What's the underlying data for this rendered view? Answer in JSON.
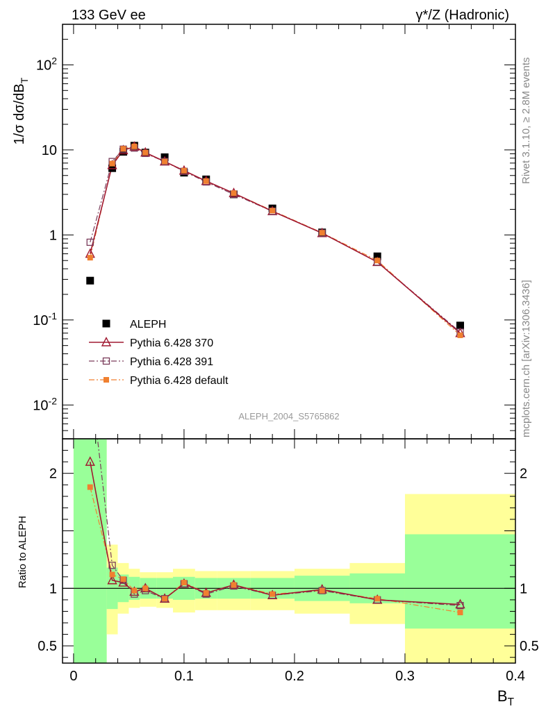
{
  "header": {
    "left": "133 GeV ee",
    "right": "γ*/Z (Hadronic)"
  },
  "side_labels": {
    "rivet": "Rivet 3.1.10, ≥ 2.8M events",
    "mcplots": "mcplots.cern.ch [arXiv:1306.3436]"
  },
  "analysis_id": "ALEPH_2004_S5765862",
  "chart_data": [
    {
      "type": "scatter",
      "panel": "main",
      "ylabel": "1/σ  dσ/dB_T",
      "yscale": "log",
      "ylim": [
        0.004,
        300
      ],
      "xlim": [
        -0.01,
        0.4
      ],
      "y_ticks": [
        {
          "value": 0.01,
          "label": "10^-2"
        },
        {
          "value": 0.1,
          "label": "10^-1"
        },
        {
          "value": 1,
          "label": "1"
        },
        {
          "value": 10,
          "label": "10"
        },
        {
          "value": 100,
          "label": "10^2"
        }
      ],
      "legend_position": "bottom-left",
      "series": [
        {
          "name": "ALEPH",
          "style": "data",
          "color": "#000000",
          "x": [
            0.015,
            0.035,
            0.045,
            0.055,
            0.065,
            0.0825,
            0.1,
            0.12,
            0.145,
            0.18,
            0.225,
            0.275,
            0.35
          ],
          "y": [
            0.29,
            6.1,
            9.5,
            11.2,
            9.3,
            8.2,
            5.4,
            4.5,
            3.0,
            2.05,
            1.07,
            0.56,
            0.086
          ]
        },
        {
          "name": "Pythia 6.428 370",
          "style": "solid-triangle",
          "color": "#a01830",
          "x": [
            0.015,
            0.035,
            0.045,
            0.055,
            0.065,
            0.0825,
            0.1,
            0.12,
            0.145,
            0.18,
            0.225,
            0.275,
            0.35
          ],
          "y": [
            0.6,
            6.6,
            9.9,
            10.9,
            9.3,
            7.3,
            5.7,
            4.3,
            3.1,
            1.9,
            1.05,
            0.48,
            0.07
          ]
        },
        {
          "name": "Pythia 6.428 391",
          "style": "dashdot-square",
          "color": "#7a3b5a",
          "x": [
            0.015,
            0.035,
            0.045,
            0.055,
            0.065,
            0.0825,
            0.1,
            0.12,
            0.145,
            0.18,
            0.225,
            0.275,
            0.35
          ],
          "y": [
            0.82,
            7.3,
            10.2,
            10.5,
            9.1,
            7.3,
            5.6,
            4.2,
            3.0,
            1.9,
            1.05,
            0.48,
            0.072
          ]
        },
        {
          "name": "Pythia 6.428 default",
          "style": "dashdot-filledsquare",
          "color": "#f08030",
          "x": [
            0.015,
            0.035,
            0.045,
            0.055,
            0.065,
            0.0825,
            0.1,
            0.12,
            0.145,
            0.18,
            0.225,
            0.275,
            0.35
          ],
          "y": [
            0.54,
            6.9,
            10.3,
            11.0,
            9.3,
            7.3,
            5.7,
            4.3,
            3.1,
            1.93,
            1.06,
            0.5,
            0.066
          ]
        }
      ]
    },
    {
      "type": "line",
      "panel": "ratio",
      "ylabel": "Ratio to ALEPH",
      "xlabel": "B_T",
      "ylim": [
        0.35,
        2.3
      ],
      "xlim": [
        -0.01,
        0.4
      ],
      "x_ticks": [
        {
          "value": 0,
          "label": "0"
        },
        {
          "value": 0.1,
          "label": "0.1"
        },
        {
          "value": 0.2,
          "label": "0.2"
        },
        {
          "value": 0.3,
          "label": "0.3"
        },
        {
          "value": 0.4,
          "label": "0.4"
        }
      ],
      "y_ticks": [
        {
          "value": 0.5,
          "label": "0.5"
        },
        {
          "value": 1,
          "label": "1"
        },
        {
          "value": 2,
          "label": "2"
        }
      ],
      "bands": [
        {
          "x0": 0.0,
          "x1": 0.03,
          "y1_lo": 0.35,
          "y1_hi": 2.3,
          "y2_lo": 0.35,
          "y2_hi": 2.3
        },
        {
          "x0": 0.03,
          "x1": 0.04,
          "y1_lo": 0.82,
          "y1_hi": 1.18,
          "y2_lo": 0.6,
          "y2_hi": 1.38
        },
        {
          "x0": 0.04,
          "x1": 0.05,
          "y1_lo": 0.88,
          "y1_hi": 1.12,
          "y2_lo": 0.78,
          "y2_hi": 1.22
        },
        {
          "x0": 0.05,
          "x1": 0.06,
          "y1_lo": 0.9,
          "y1_hi": 1.1,
          "y2_lo": 0.83,
          "y2_hi": 1.17
        },
        {
          "x0": 0.06,
          "x1": 0.075,
          "y1_lo": 0.91,
          "y1_hi": 1.09,
          "y2_lo": 0.84,
          "y2_hi": 1.14
        },
        {
          "x0": 0.075,
          "x1": 0.09,
          "y1_lo": 0.91,
          "y1_hi": 1.09,
          "y2_lo": 0.83,
          "y2_hi": 1.14
        },
        {
          "x0": 0.09,
          "x1": 0.11,
          "y1_lo": 0.9,
          "y1_hi": 1.1,
          "y2_lo": 0.79,
          "y2_hi": 1.17
        },
        {
          "x0": 0.11,
          "x1": 0.13,
          "y1_lo": 0.91,
          "y1_hi": 1.09,
          "y2_lo": 0.81,
          "y2_hi": 1.15
        },
        {
          "x0": 0.13,
          "x1": 0.16,
          "y1_lo": 0.91,
          "y1_hi": 1.09,
          "y2_lo": 0.81,
          "y2_hi": 1.15
        },
        {
          "x0": 0.16,
          "x1": 0.2,
          "y1_lo": 0.91,
          "y1_hi": 1.09,
          "y2_lo": 0.81,
          "y2_hi": 1.15
        },
        {
          "x0": 0.2,
          "x1": 0.25,
          "y1_lo": 0.89,
          "y1_hi": 1.11,
          "y2_lo": 0.78,
          "y2_hi": 1.17
        },
        {
          "x0": 0.25,
          "x1": 0.3,
          "y1_lo": 0.87,
          "y1_hi": 1.13,
          "y2_lo": 0.69,
          "y2_hi": 1.22
        },
        {
          "x0": 0.3,
          "x1": 0.4,
          "y1_lo": 0.65,
          "y1_hi": 1.47,
          "y2_lo": 0.35,
          "y2_hi": 1.82
        }
      ],
      "band_colors": {
        "inner": "#99ff99",
        "outer": "#ffff99"
      },
      "series": [
        {
          "name": "Pythia 6.428 370",
          "style": "solid-triangle",
          "color": "#a01830",
          "x": [
            0.015,
            0.035,
            0.045,
            0.055,
            0.065,
            0.0825,
            0.1,
            0.12,
            0.145,
            0.18,
            0.225,
            0.275,
            0.35
          ],
          "y": [
            2.1,
            1.07,
            1.05,
            0.97,
            1.0,
            0.91,
            1.04,
            0.96,
            1.03,
            0.94,
            0.99,
            0.9,
            0.86
          ]
        },
        {
          "name": "Pythia 6.428 391",
          "style": "dashdot-square",
          "color": "#7a3b5a",
          "x": [
            0.015,
            0.035,
            0.045,
            0.055,
            0.065,
            0.0825,
            0.1,
            0.12,
            0.145,
            0.18,
            0.225,
            0.275,
            0.35
          ],
          "y": [
            2.85,
            1.2,
            1.07,
            0.95,
            0.98,
            0.91,
            1.04,
            0.95,
            1.02,
            0.94,
            0.98,
            0.9,
            0.85
          ]
        },
        {
          "name": "Pythia 6.428 default",
          "style": "dashdot-filledsquare",
          "color": "#f08030",
          "x": [
            0.015,
            0.035,
            0.045,
            0.055,
            0.065,
            0.0825,
            0.1,
            0.12,
            0.145,
            0.18,
            0.225,
            0.275,
            0.35
          ],
          "y": [
            1.88,
            1.12,
            1.08,
            0.98,
            1.0,
            0.91,
            1.05,
            0.96,
            1.03,
            0.95,
            0.98,
            0.91,
            0.79
          ]
        }
      ]
    }
  ]
}
